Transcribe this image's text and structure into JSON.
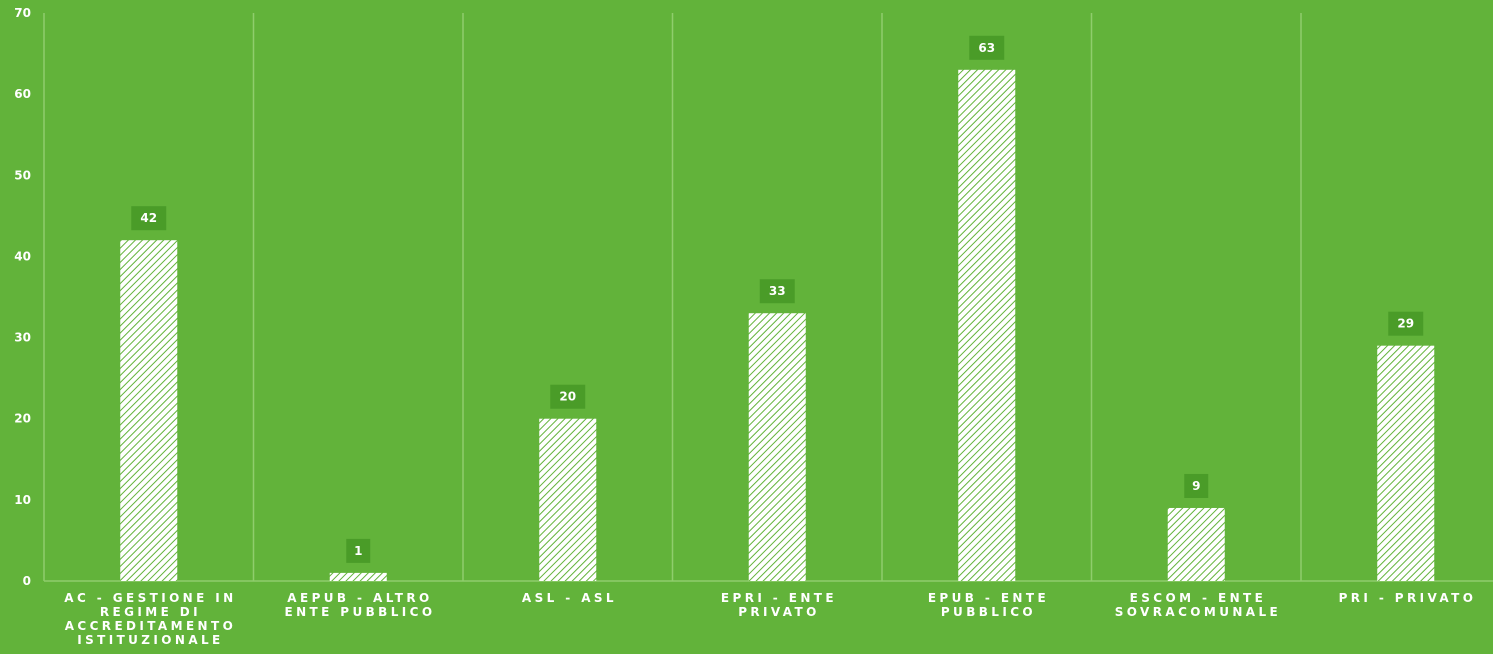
{
  "chart_data": {
    "type": "bar",
    "categories": [
      "AC - GESTIONE IN REGIME DI ACCREDITAMENTO ISTITUZIONALE",
      "AEPUB - ALTRO ENTE PUBBLICO",
      "ASL - ASL",
      "EPRI - ENTE PRIVATO",
      "EPUB - ENTE PUBBLICO",
      "ESCOM - ENTE SOVRACOMUNALE",
      "PRI - PRIVATO"
    ],
    "category_lines": [
      [
        "AC - GESTIONE IN",
        "REGIME DI",
        "ACCREDITAMENTO",
        "ISTITUZIONALE"
      ],
      [
        "AEPUB - ALTRO",
        "ENTE PUBBLICO"
      ],
      [
        "ASL - ASL"
      ],
      [
        "EPRI - ENTE",
        "PRIVATO"
      ],
      [
        "EPUB - ENTE",
        "PUBBLICO"
      ],
      [
        "ESCOM - ENTE",
        "SOVRACOMUNALE"
      ],
      [
        "PRI - PRIVATO"
      ]
    ],
    "values": [
      42,
      1,
      20,
      33,
      63,
      9,
      29
    ],
    "data_labels": [
      "42",
      "1",
      "20",
      "33",
      "63",
      "9",
      "29"
    ],
    "yticks": [
      0,
      10,
      20,
      30,
      40,
      50,
      60,
      70
    ],
    "ytick_labels": [
      "0",
      "10",
      "20",
      "30",
      "40",
      "50",
      "60",
      "70"
    ],
    "ylim": [
      0,
      70
    ],
    "title": "",
    "xlabel": "",
    "ylabel": "",
    "grid": "vertical separators",
    "legend": "none",
    "colors": {
      "background": "#62b33a",
      "bar_fill": "#ffffff",
      "bar_hatch": "#62b33a",
      "label_box": "#4a9c28",
      "text": "#ffffff",
      "separator": "#8fcd6d"
    }
  }
}
